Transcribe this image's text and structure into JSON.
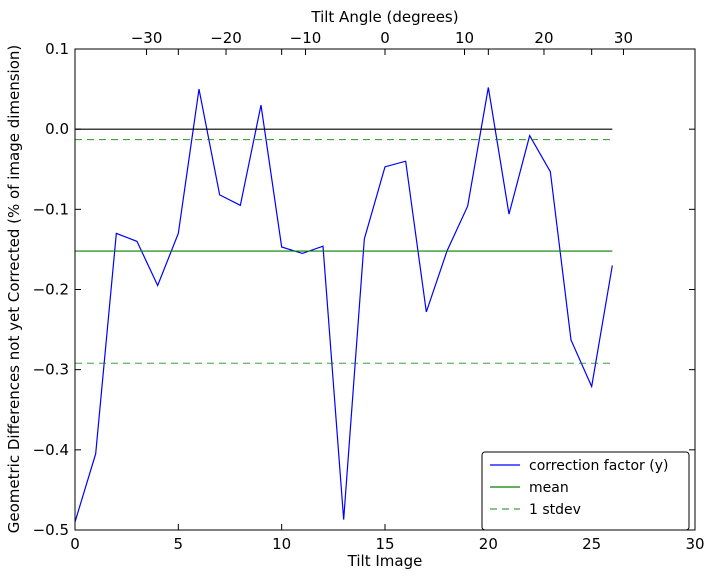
{
  "chart_data": {
    "type": "line",
    "xlabel": "Tilt Image",
    "ylabel": "Geometric Differences not yet Corrected (% of image dimension)",
    "top_xlabel": "Tilt Angle (degrees)",
    "xlim": [
      0,
      30
    ],
    "ylim": [
      -0.5,
      0.1
    ],
    "top_xlim": [
      -39,
      39
    ],
    "x_ticks": [
      0,
      5,
      10,
      15,
      20,
      25,
      30
    ],
    "y_ticks": [
      0.1,
      0.0,
      -0.1,
      -0.2,
      -0.3,
      -0.4,
      -0.5
    ],
    "top_ticks": [
      -30,
      -20,
      -10,
      0,
      10,
      20,
      30
    ],
    "x_tick_labels": [
      "0",
      "5",
      "10",
      "15",
      "20",
      "25",
      "30"
    ],
    "y_tick_labels": [
      "0.1",
      "0.0",
      "−0.1",
      "−0.2",
      "−0.3",
      "−0.4",
      "−0.5"
    ],
    "top_tick_labels": [
      "−30",
      "−20",
      "−10",
      "0",
      "10",
      "20",
      "30"
    ],
    "grid": false,
    "legend_position": "lower-right",
    "series": [
      {
        "name": "correction factor (y)",
        "color": "#0000ff",
        "style": "solid",
        "x": [
          0,
          1,
          2,
          3,
          4,
          5,
          6,
          7,
          8,
          9,
          10,
          11,
          12,
          13,
          14,
          15,
          16,
          17,
          18,
          19,
          20,
          21,
          22,
          23,
          24,
          25,
          26
        ],
        "y": [
          -0.49,
          -0.405,
          -0.13,
          -0.14,
          -0.195,
          -0.13,
          0.05,
          -0.082,
          -0.095,
          0.03,
          -0.147,
          -0.155,
          -0.146,
          -0.487,
          -0.137,
          -0.047,
          -0.04,
          -0.228,
          -0.152,
          -0.096,
          0.052,
          -0.106,
          -0.008,
          -0.053,
          -0.263,
          -0.321,
          -0.17
        ]
      },
      {
        "name": "mean",
        "color": "#008000",
        "style": "solid",
        "x": [
          0,
          26
        ],
        "y": [
          -0.152,
          -0.152
        ]
      },
      {
        "name": "1 stdev",
        "color": "#008000",
        "style": "dashed",
        "x": [
          0,
          26
        ],
        "y": [
          -0.013,
          -0.013
        ]
      },
      {
        "name": "",
        "color": "#008000",
        "style": "dashed",
        "x": [
          0,
          26
        ],
        "y": [
          -0.292,
          -0.292
        ]
      },
      {
        "name": "",
        "color": "#000000",
        "style": "solid",
        "x": [
          0,
          26
        ],
        "y": [
          0,
          0
        ]
      }
    ]
  }
}
